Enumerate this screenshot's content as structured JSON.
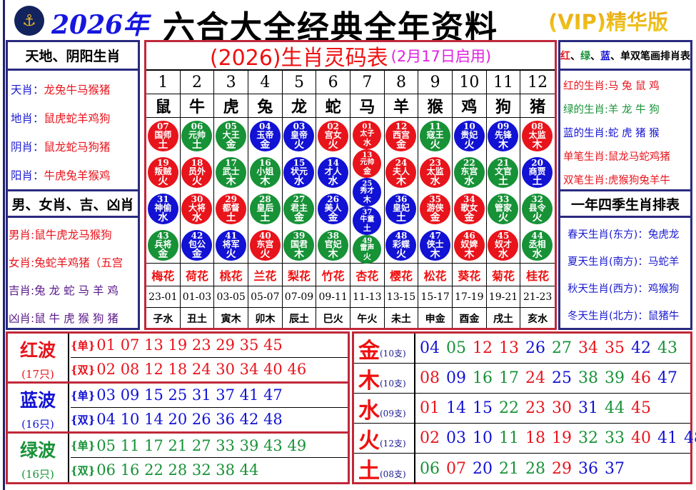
{
  "colors": {
    "red": "#e8141c",
    "green": "#179237",
    "blue": "#1212d4",
    "purple": "#5a1a8a",
    "title_red": "#ee1010",
    "magenta": "#e020e0"
  },
  "header": {
    "logo_icon": "hkjc-logo-icon",
    "year": "2026年",
    "title": "六合大全经典全年资料",
    "vip": "(VIP)精华版"
  },
  "left": {
    "title1": "天地、阴阳生肖",
    "rows1": [
      {
        "label": "天肖：",
        "value": "龙兔牛马猴猪"
      },
      {
        "label": "地肖：",
        "value": "鼠虎蛇羊鸡狗"
      },
      {
        "label": "阴肖：",
        "value": "鼠龙蛇马狗猪"
      },
      {
        "label": "阳肖：",
        "value": "牛虎兔羊猴鸡"
      }
    ],
    "title2": "男、女肖、吉、凶肖",
    "rows2": [
      {
        "label": "男肖:",
        "value": "鼠牛虎龙马猴狗"
      },
      {
        "label": "女肖:",
        "value": "兔蛇羊鸡猪（五宫"
      },
      {
        "label": "吉肖:",
        "value": "兔 龙 蛇 马 羊 鸡"
      },
      {
        "label": "凶肖:",
        "value": "鼠 牛 虎 猴 狗 猪"
      }
    ]
  },
  "right": {
    "title1": {
      "red": "红",
      "sep1": "、",
      "green": "绿",
      "sep2": "、",
      "blue": "蓝",
      "sep3": "、",
      "rest": "单双笔画排肖表"
    },
    "rows1": [
      {
        "label": "红的生肖:",
        "value": "马 兔 鼠 鸡",
        "color": "red"
      },
      {
        "label": "绿的生肖:",
        "value": "羊 龙 牛 狗",
        "color": "green"
      },
      {
        "label": "蓝的生肖:",
        "value": "蛇 虎 猪 猴",
        "color": "blue"
      },
      {
        "label": "单笔生肖:",
        "value": "鼠龙马蛇鸡猪",
        "color": "red"
      },
      {
        "label": "双笔生肖:",
        "value": "虎猴狗兔羊牛",
        "color": "red"
      }
    ],
    "title2": "一年四季生肖排表",
    "rows2": [
      {
        "label": "春天生肖(东方)：",
        "value": "兔虎龙"
      },
      {
        "label": "夏天生肖(南方)：",
        "value": "马蛇羊"
      },
      {
        "label": "秋天生肖(西方)：",
        "value": "鸡猴狗"
      },
      {
        "label": "冬天生肖(北方)：",
        "value": "鼠猪牛"
      }
    ]
  },
  "center": {
    "title": "(2026)生肖灵码表",
    "subtitle": "(2月17日启用)",
    "columns": [
      {
        "index": "1",
        "zodiac": "鼠",
        "flower": "梅花",
        "hours": "23-01",
        "branch": "子水",
        "balls": [
          [
            "07",
            "国师",
            "土",
            "red"
          ],
          [
            "19",
            "叛贼",
            "火",
            "red"
          ],
          [
            "31",
            "神偷",
            "水",
            "blue"
          ],
          [
            "43",
            "兵将",
            "金",
            "green"
          ]
        ]
      },
      {
        "index": "2",
        "zodiac": "牛",
        "flower": "荷花",
        "hours": "01-03",
        "branch": "丑土",
        "balls": [
          [
            "06",
            "元帅",
            "土",
            "green"
          ],
          [
            "18",
            "员外",
            "火",
            "red"
          ],
          [
            "30",
            "大将",
            "水",
            "red"
          ],
          [
            "42",
            "包公",
            "金",
            "blue"
          ]
        ]
      },
      {
        "index": "3",
        "zodiac": "虎",
        "flower": "桃花",
        "hours": "03-05",
        "branch": "寅木",
        "balls": [
          [
            "05",
            "大王",
            "金",
            "green"
          ],
          [
            "17",
            "武士",
            "木",
            "green"
          ],
          [
            "29",
            "都督",
            "土",
            "red"
          ],
          [
            "41",
            "将军",
            "火",
            "blue"
          ]
        ]
      },
      {
        "index": "4",
        "zodiac": "兔",
        "flower": "兰花",
        "hours": "05-07",
        "branch": "卯木",
        "balls": [
          [
            "04",
            "玉帝",
            "金",
            "blue"
          ],
          [
            "16",
            "小姐",
            "木",
            "green"
          ],
          [
            "28",
            "皇后",
            "土",
            "green"
          ],
          [
            "40",
            "东宫",
            "火",
            "red"
          ]
        ]
      },
      {
        "index": "5",
        "zodiac": "龙",
        "flower": "梨花",
        "hours": "07-09",
        "branch": "辰土",
        "balls": [
          [
            "03",
            "皇帝",
            "火",
            "blue"
          ],
          [
            "15",
            "状元",
            "水",
            "blue"
          ],
          [
            "27",
            "君主",
            "金",
            "green"
          ],
          [
            "39",
            "国君",
            "木",
            "green"
          ]
        ]
      },
      {
        "index": "6",
        "zodiac": "蛇",
        "flower": "竹花",
        "hours": "09-11",
        "branch": "巳火",
        "balls": [
          [
            "02",
            "宫女",
            "火",
            "red"
          ],
          [
            "14",
            "才人",
            "水",
            "blue"
          ],
          [
            "26",
            "美人",
            "金",
            "blue"
          ],
          [
            "38",
            "官妃",
            "木",
            "green"
          ]
        ]
      },
      {
        "index": "7",
        "zodiac": "马",
        "flower": "杏花",
        "hours": "11-13",
        "branch": "午火",
        "balls": [
          [
            "01",
            "太子",
            "水",
            "red"
          ],
          [
            "13",
            "元帅",
            "金",
            "red"
          ],
          [
            "25",
            "秀才",
            "木",
            "blue"
          ],
          [
            "37",
            "牛童",
            "土",
            "blue"
          ],
          [
            "49",
            "雷声",
            "火",
            "green"
          ]
        ]
      },
      {
        "index": "8",
        "zodiac": "羊",
        "flower": "樱花",
        "hours": "13-15",
        "branch": "未土",
        "balls": [
          [
            "12",
            "西宫",
            "金",
            "red"
          ],
          [
            "24",
            "夫人",
            "木",
            "red"
          ],
          [
            "36",
            "皇妃",
            "土",
            "blue"
          ],
          [
            "48",
            "彩蝶",
            "火",
            "blue"
          ]
        ]
      },
      {
        "index": "9",
        "zodiac": "猴",
        "flower": "松花",
        "hours": "15-17",
        "branch": "申金",
        "balls": [
          [
            "11",
            "寇王",
            "火",
            "green"
          ],
          [
            "23",
            "太监",
            "水",
            "red"
          ],
          [
            "35",
            "游侠",
            "金",
            "red"
          ],
          [
            "47",
            "侠士",
            "木",
            "blue"
          ]
        ]
      },
      {
        "index": "10",
        "zodiac": "鸡",
        "flower": "葵花",
        "hours": "17-19",
        "branch": "酉金",
        "balls": [
          [
            "10",
            "贵妃",
            "火",
            "blue"
          ],
          [
            "22",
            "东宫",
            "水",
            "green"
          ],
          [
            "34",
            "歌女",
            "金",
            "red"
          ],
          [
            "46",
            "奴婢",
            "木",
            "red"
          ]
        ]
      },
      {
        "index": "11",
        "zodiac": "狗",
        "flower": "菊花",
        "hours": "19-21",
        "branch": "戌土",
        "balls": [
          [
            "09",
            "先锋",
            "木",
            "blue"
          ],
          [
            "21",
            "文官",
            "土",
            "green"
          ],
          [
            "33",
            "管家",
            "火",
            "green"
          ],
          [
            "45",
            "奴才",
            "水",
            "red"
          ]
        ]
      },
      {
        "index": "12",
        "zodiac": "猪",
        "flower": "桂花",
        "hours": "21-23",
        "branch": "亥水",
        "balls": [
          [
            "08",
            "太监",
            "木",
            "red"
          ],
          [
            "20",
            "商贾",
            "土",
            "blue"
          ],
          [
            "32",
            "县令",
            "火",
            "green"
          ],
          [
            "44",
            "丞相",
            "水",
            "green"
          ]
        ]
      }
    ]
  },
  "waves": [
    {
      "name": "红波",
      "count": "(17只)",
      "color": "red",
      "odd_label": "{单}",
      "odd": "01 07 13 19 23 29 35 45",
      "even_label": "{双}",
      "even": "02 08 12 18 24 30 34 40 46"
    },
    {
      "name": "蓝波",
      "count": "(16只)",
      "color": "blue",
      "odd_label": "{单}",
      "odd": "03 09 15 25 31 37 41 47",
      "even_label": "{双}",
      "even": "04 10 14 20 26 36 42 48"
    },
    {
      "name": "绿波",
      "count": "(16只)",
      "color": "green",
      "odd_label": "{单}",
      "odd": "05 11 17 21 27 33 39 43 49",
      "even_label": "{双}",
      "even": "06 16 22 28 32 38 44"
    }
  ],
  "elements": [
    {
      "name": "金",
      "count": "(10支)",
      "numbers": [
        "04",
        "05",
        "12",
        "13",
        "26",
        "27",
        "34",
        "35",
        "42",
        "43"
      ]
    },
    {
      "name": "木",
      "count": "(10支)",
      "numbers": [
        "08",
        "09",
        "16",
        "17",
        "24",
        "25",
        "38",
        "39",
        "46",
        "47"
      ]
    },
    {
      "name": "水",
      "count": "(09支)",
      "numbers": [
        "01",
        "14",
        "15",
        "22",
        "23",
        "30",
        "31",
        "44",
        "45"
      ]
    },
    {
      "name": "火",
      "count": "(12支)",
      "numbers": [
        "02",
        "03",
        "10",
        "11",
        "18",
        "19",
        "32",
        "33",
        "40",
        "41",
        "48",
        "49"
      ]
    },
    {
      "name": "土",
      "count": "(08支)",
      "numbers": [
        "06",
        "07",
        "20",
        "21",
        "28",
        "29",
        "36",
        "37"
      ]
    }
  ]
}
